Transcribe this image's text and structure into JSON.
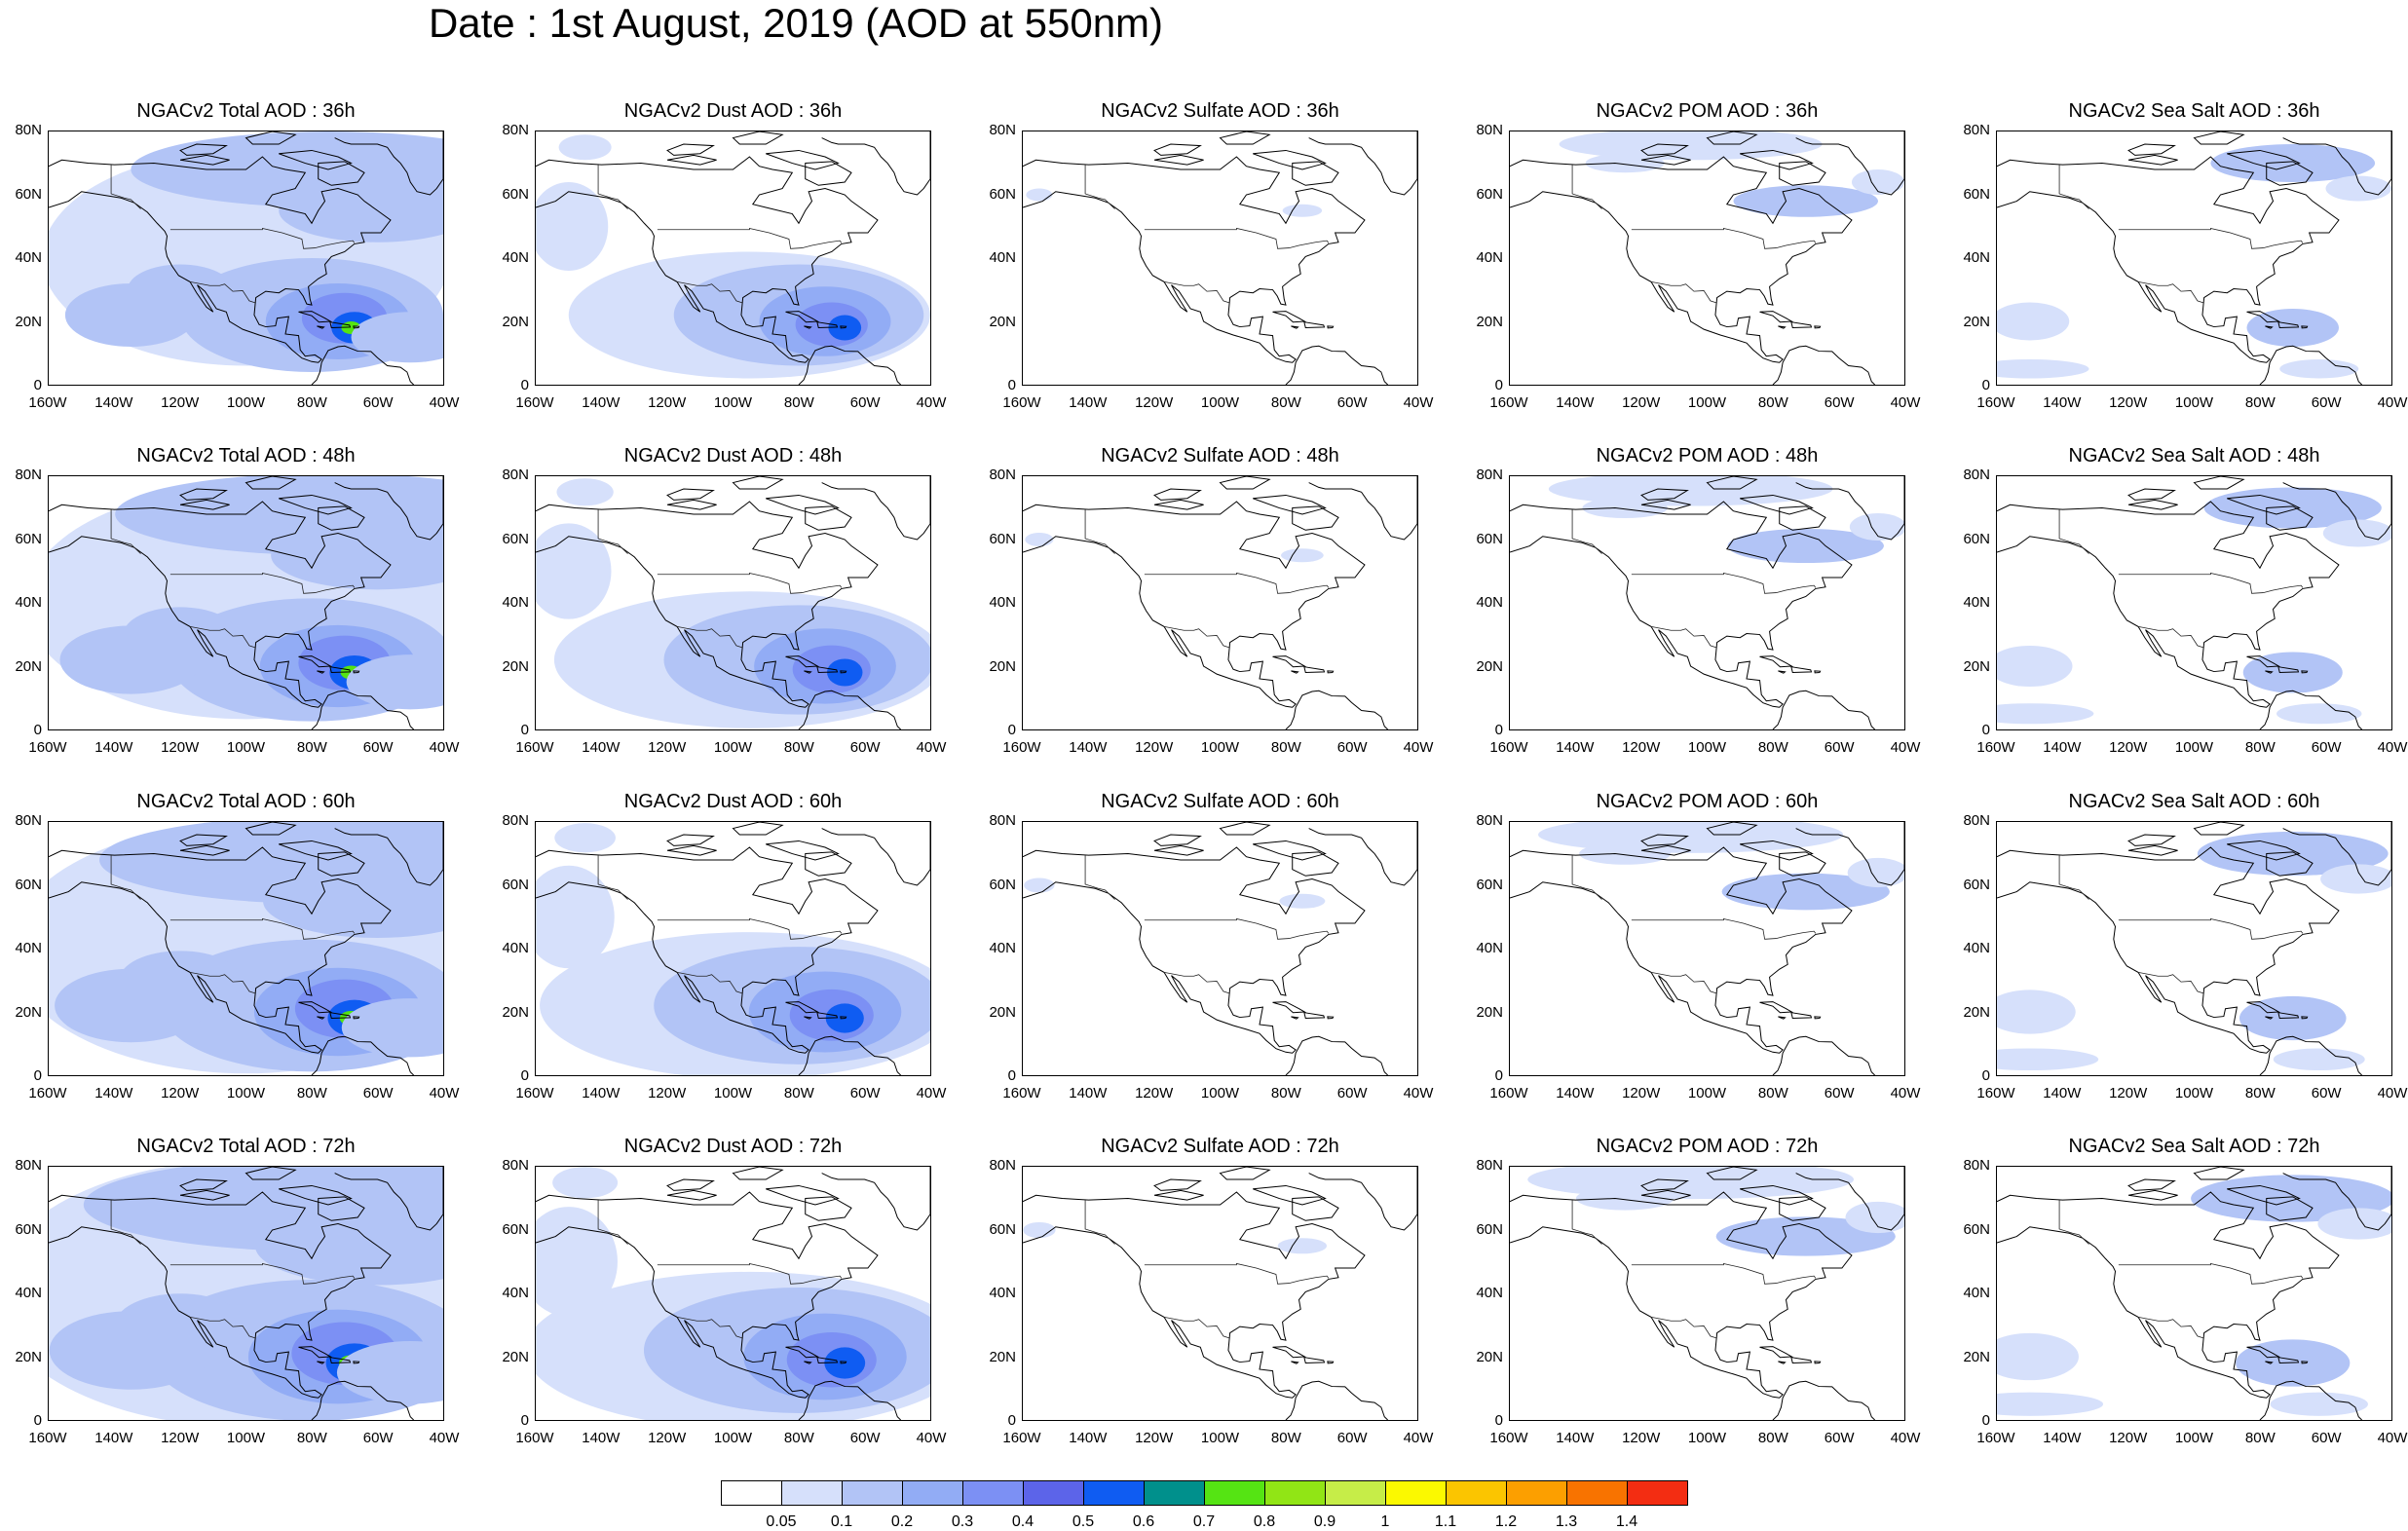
{
  "title": "Date : 1st August, 2019 (AOD at 550nm)",
  "lat_ticks": [
    "80N",
    "60N",
    "40N",
    "20N",
    "0"
  ],
  "lon_ticks": [
    "160W",
    "140W",
    "120W",
    "100W",
    "80W",
    "60W",
    "40W"
  ],
  "panels": [
    [
      "NGACv2 Total AOD : 36h",
      "NGACv2 Dust AOD : 36h",
      "NGACv2 Sulfate AOD : 36h",
      "NGACv2 POM AOD : 36h",
      "NGACv2 Sea Salt AOD : 36h"
    ],
    [
      "NGACv2 Total AOD : 48h",
      "NGACv2 Dust AOD : 48h",
      "NGACv2 Sulfate AOD : 48h",
      "NGACv2 POM AOD : 48h",
      "NGACv2 Sea Salt AOD : 48h"
    ],
    [
      "NGACv2 Total AOD : 60h",
      "NGACv2 Dust AOD : 60h",
      "NGACv2 Sulfate AOD : 60h",
      "NGACv2 POM AOD : 60h",
      "NGACv2 Sea Salt AOD : 60h"
    ],
    [
      "NGACv2 Total AOD : 72h",
      "NGACv2 Dust AOD : 72h",
      "NGACv2 Sulfate AOD : 72h",
      "NGACv2 POM AOD : 72h",
      "NGACv2 Sea Salt  AOD : 72h"
    ]
  ],
  "legend": {
    "labels": [
      "0.05",
      "0.1",
      "0.2",
      "0.3",
      "0.4",
      "0.5",
      "0.6",
      "0.7",
      "0.8",
      "0.9",
      "1",
      "1.1",
      "1.2",
      "1.3",
      "1.4"
    ],
    "colors": [
      "#ffffff",
      "#d6e0fb",
      "#b2c4f6",
      "#92acf5",
      "#7c90f4",
      "#5c64e9",
      "#0f5cf2",
      "#00908c",
      "#55e413",
      "#91e515",
      "#c6ed48",
      "#fbf900",
      "#fbc500",
      "#fc9f00",
      "#f87300",
      "#f32d12"
    ]
  }
}
